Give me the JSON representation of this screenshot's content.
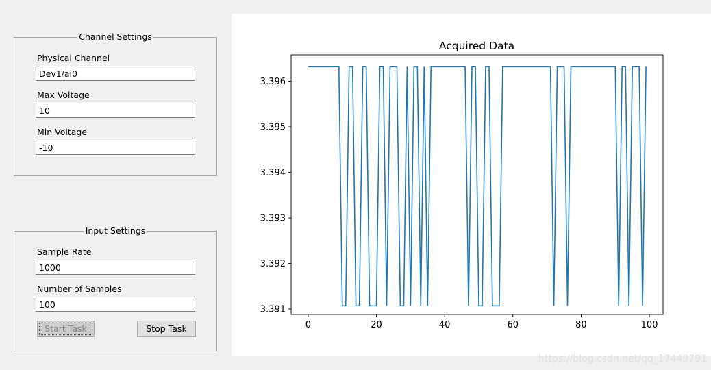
{
  "channel_settings": {
    "title": "Channel Settings",
    "physical_channel_label": "Physical Channel",
    "physical_channel_value": "Dev1/ai0",
    "max_voltage_label": "Max Voltage",
    "max_voltage_value": "10",
    "min_voltage_label": "Min Voltage",
    "min_voltage_value": "-10"
  },
  "input_settings": {
    "title": "Input Settings",
    "sample_rate_label": "Sample Rate",
    "sample_rate_value": "1000",
    "num_samples_label": "Number of Samples",
    "num_samples_value": "100",
    "start_label": "Start Task",
    "stop_label": "Stop Task"
  },
  "watermark": "https://blog.csdn.net/qq_17449791",
  "chart_data": {
    "type": "line",
    "title": "Acquired Data",
    "xlabel": "",
    "ylabel": "",
    "xlim": [
      -5,
      104
    ],
    "ylim": [
      3.39088,
      3.39658
    ],
    "xticks": [
      0,
      20,
      40,
      60,
      80,
      100
    ],
    "yticks": [
      3.391,
      3.392,
      3.393,
      3.394,
      3.395,
      3.396
    ],
    "ytick_labels": [
      "3.391",
      "3.392",
      "3.393",
      "3.394",
      "3.395",
      "3.396"
    ],
    "grid": false,
    "color": "#1f77b4",
    "high": 3.39632,
    "low": 3.39107,
    "x": [
      0,
      1,
      2,
      3,
      4,
      5,
      6,
      7,
      8,
      9,
      10,
      11,
      12,
      13,
      14,
      15,
      16,
      17,
      18,
      19,
      20,
      21,
      22,
      23,
      24,
      25,
      26,
      27,
      28,
      29,
      30,
      31,
      32,
      33,
      34,
      35,
      36,
      37,
      38,
      39,
      40,
      41,
      42,
      43,
      44,
      45,
      46,
      47,
      48,
      49,
      50,
      51,
      52,
      53,
      54,
      55,
      56,
      57,
      58,
      59,
      60,
      61,
      62,
      63,
      64,
      65,
      66,
      67,
      68,
      69,
      70,
      71,
      72,
      73,
      74,
      75,
      76,
      77,
      78,
      79,
      80,
      81,
      82,
      83,
      84,
      85,
      86,
      87,
      88,
      89,
      90,
      91,
      92,
      93,
      94,
      95,
      96,
      97,
      98,
      99
    ],
    "values": [
      3.39632,
      3.39632,
      3.39632,
      3.39632,
      3.39632,
      3.39632,
      3.39632,
      3.39632,
      3.39632,
      3.39632,
      3.39107,
      3.39107,
      3.39632,
      3.39632,
      3.39107,
      3.39107,
      3.39632,
      3.39632,
      3.39107,
      3.39107,
      3.39107,
      3.39632,
      3.39632,
      3.39107,
      3.39632,
      3.39632,
      3.39632,
      3.39107,
      3.39107,
      3.39632,
      3.39107,
      3.39632,
      3.39632,
      3.39107,
      3.39632,
      3.39107,
      3.39632,
      3.39632,
      3.39632,
      3.39632,
      3.39632,
      3.39632,
      3.39632,
      3.39632,
      3.39632,
      3.39632,
      3.39632,
      3.39107,
      3.39632,
      3.39632,
      3.39107,
      3.39107,
      3.39632,
      3.39632,
      3.39107,
      3.39107,
      3.39107,
      3.39632,
      3.39632,
      3.39632,
      3.39632,
      3.39632,
      3.39632,
      3.39632,
      3.39632,
      3.39632,
      3.39632,
      3.39632,
      3.39632,
      3.39632,
      3.39632,
      3.39632,
      3.39107,
      3.39632,
      3.39632,
      3.39632,
      3.39107,
      3.39632,
      3.39632,
      3.39632,
      3.39632,
      3.39632,
      3.39632,
      3.39632,
      3.39632,
      3.39632,
      3.39632,
      3.39632,
      3.39632,
      3.39632,
      3.39632,
      3.39107,
      3.39632,
      3.39632,
      3.39107,
      3.39632,
      3.39632,
      3.39632,
      3.39107,
      3.39632
    ]
  }
}
